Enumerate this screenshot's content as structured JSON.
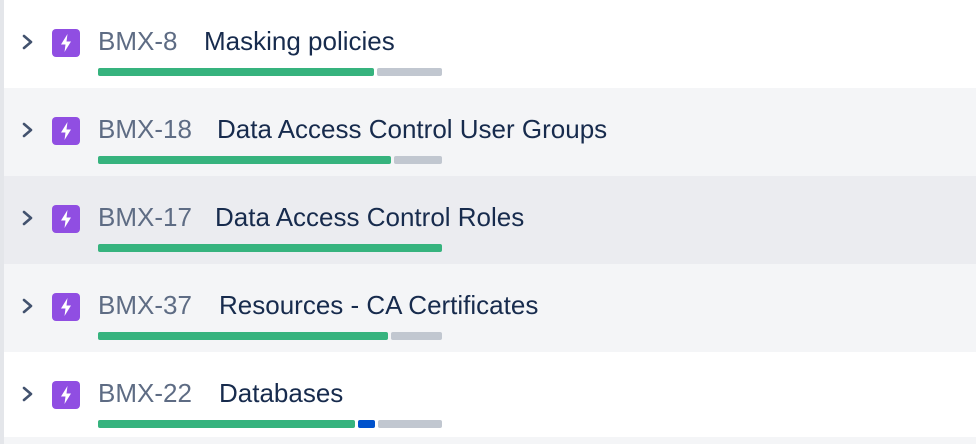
{
  "colors": {
    "done": "#36b37e",
    "in_progress": "#0052cc",
    "todo": "#c1c7d0",
    "epic_icon": "#904ee2",
    "key_text": "#5e6c84",
    "summary_text": "#172b4d"
  },
  "rows": [
    {
      "key": "BMX-8",
      "summary": "Masking policies",
      "icon": "epic-lightning-icon",
      "progress": {
        "done": 0.81,
        "in_progress": 0,
        "todo": 0.19
      }
    },
    {
      "key": "BMX-18",
      "summary": "Data Access Control User Groups",
      "icon": "epic-lightning-icon",
      "progress": {
        "done": 0.86,
        "in_progress": 0,
        "todo": 0.14
      }
    },
    {
      "key": "BMX-17",
      "summary": "Data Access Control Roles",
      "icon": "epic-lightning-icon",
      "progress": {
        "done": 1.0,
        "in_progress": 0,
        "todo": 0
      }
    },
    {
      "key": "BMX-37",
      "summary": "Resources - CA Certificates",
      "icon": "epic-lightning-icon",
      "progress": {
        "done": 0.85,
        "in_progress": 0,
        "todo": 0.15
      }
    },
    {
      "key": "BMX-22",
      "summary": "Databases",
      "icon": "epic-lightning-icon",
      "progress": {
        "done": 0.76,
        "in_progress": 0.05,
        "todo": 0.19
      }
    }
  ]
}
